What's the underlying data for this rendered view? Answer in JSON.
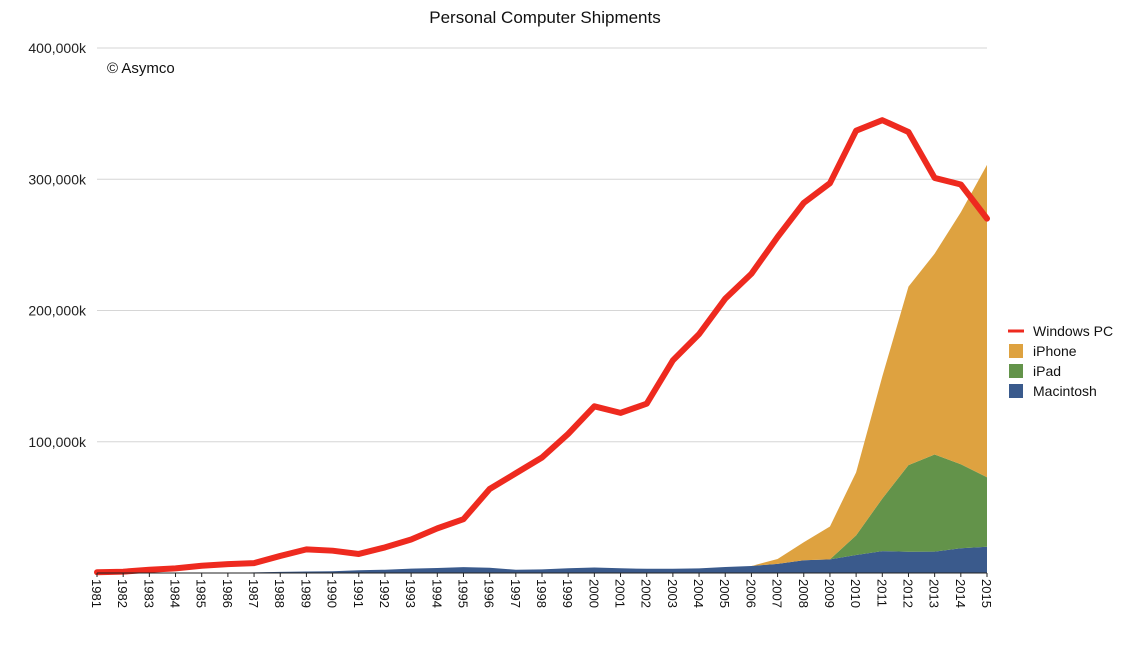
{
  "chart_data": {
    "type": "area",
    "title": "Personal Computer Shipments",
    "annotation": "© Asymco",
    "xlabel": "",
    "ylabel": "",
    "ylim": [
      0,
      400000
    ],
    "y_ticks": [
      100000,
      200000,
      300000,
      400000
    ],
    "y_tick_labels": [
      "100,000k",
      "200,000k",
      "300,000k",
      "400,000k"
    ],
    "grid": true,
    "legend_position": "right",
    "x": [
      "1981",
      "1982",
      "1983",
      "1984",
      "1985",
      "1986",
      "1987",
      "1988",
      "1989",
      "1990",
      "1991",
      "1992",
      "1993",
      "1994",
      "1995",
      "1996",
      "1997",
      "1998",
      "1999",
      "2000",
      "2001",
      "2002",
      "2003",
      "2004",
      "2005",
      "2006",
      "2007",
      "2008",
      "2009",
      "2010",
      "2011",
      "2012",
      "2013",
      "2014",
      "2015"
    ],
    "stacked_areas": [
      {
        "name": "Macintosh",
        "color": "#3a5a8c",
        "values": [
          0,
          0,
          0,
          0,
          0,
          0,
          500,
          900,
          1100,
          1300,
          2100,
          2500,
          3300,
          3800,
          4500,
          4000,
          2500,
          2800,
          3600,
          4200,
          3600,
          3200,
          3200,
          3500,
          4600,
          5300,
          7000,
          9700,
          10400,
          13700,
          16700,
          16200,
          16300,
          18900,
          20000
        ]
      },
      {
        "name": "iPad",
        "color": "#63934a",
        "values": [
          0,
          0,
          0,
          0,
          0,
          0,
          0,
          0,
          0,
          0,
          0,
          0,
          0,
          0,
          0,
          0,
          0,
          0,
          0,
          0,
          0,
          0,
          0,
          0,
          0,
          0,
          0,
          0,
          0,
          15000,
          40000,
          66000,
          74000,
          64000,
          53000
        ]
      },
      {
        "name": "iPhone",
        "color": "#dea240",
        "values": [
          0,
          0,
          0,
          0,
          0,
          0,
          0,
          0,
          0,
          0,
          0,
          0,
          0,
          0,
          0,
          0,
          0,
          0,
          0,
          0,
          0,
          0,
          0,
          0,
          0,
          0,
          3700,
          13700,
          25000,
          48000,
          93000,
          136000,
          153000,
          192000,
          238000
        ]
      }
    ],
    "series": [
      {
        "name": "Windows PC",
        "color": "#ee2a1f",
        "values": [
          600,
          1000,
          2500,
          3500,
          5500,
          6800,
          7500,
          13000,
          18000,
          17000,
          14500,
          19500,
          25500,
          34000,
          41000,
          64000,
          76000,
          88000,
          106000,
          127000,
          122000,
          129000,
          162000,
          182000,
          209000,
          228000,
          256000,
          282000,
          297000,
          337000,
          345000,
          336000,
          301000,
          296000,
          270000
        ]
      }
    ],
    "legend": [
      {
        "label": "Windows PC",
        "kind": "line",
        "color": "#ee2a1f"
      },
      {
        "label": "iPhone",
        "kind": "area",
        "color": "#dea240"
      },
      {
        "label": "iPad",
        "kind": "area",
        "color": "#63934a"
      },
      {
        "label": "Macintosh",
        "kind": "area",
        "color": "#3a5a8c"
      }
    ]
  }
}
